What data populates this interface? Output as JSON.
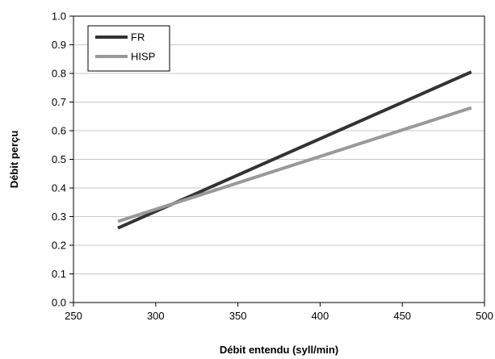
{
  "chart_data": {
    "type": "line",
    "title": "",
    "xlabel": "Débit entendu (syll/min)",
    "ylabel": "Débit perçu",
    "xlim": [
      250,
      500
    ],
    "ylim": [
      0.0,
      1.0
    ],
    "x_ticks": [
      250,
      300,
      350,
      400,
      450,
      500
    ],
    "x_tick_labels": [
      "250",
      "300",
      "350",
      "400",
      "450",
      "500"
    ],
    "y_ticks": [
      0.0,
      0.1,
      0.2,
      0.3,
      0.4,
      0.5,
      0.6,
      0.7,
      0.8,
      0.9,
      1.0
    ],
    "y_tick_labels": [
      "0.0",
      "0.1",
      "0.2",
      "0.3",
      "0.4",
      "0.5",
      "0.6",
      "0.7",
      "0.8",
      "0.9",
      "1.0"
    ],
    "grid": "horizontal",
    "legend": "top-left",
    "series": [
      {
        "name": "FR",
        "color": "#333333",
        "x": [
          277,
          492
        ],
        "y": [
          0.26,
          0.805
        ]
      },
      {
        "name": "HISP",
        "color": "#999999",
        "x": [
          277,
          492
        ],
        "y": [
          0.283,
          0.68
        ]
      }
    ]
  }
}
